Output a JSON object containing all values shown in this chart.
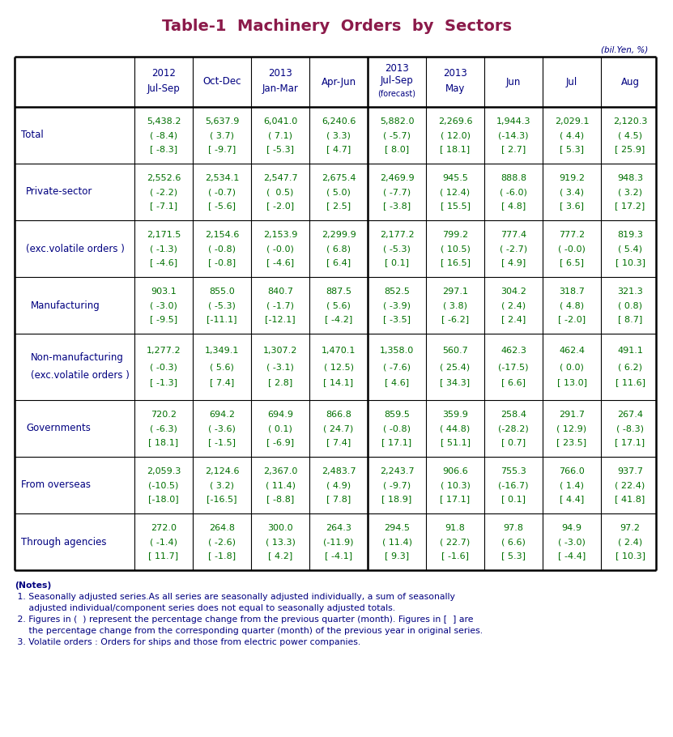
{
  "title": "Table-1  Machinery  Orders  by  Sectors",
  "title_color": "#8B1A4A",
  "unit_text": "(bil.Yen, %)",
  "unit_color": "#000080",
  "header_color": "#000080",
  "data_color": "#007000",
  "label_color": "#000080",
  "notes_color": "#000080",
  "col_headers": [
    [
      "2012",
      "Jul-Sep",
      ""
    ],
    [
      "",
      "Oct-Dec",
      ""
    ],
    [
      "2013",
      "Jan-Mar",
      ""
    ],
    [
      "",
      "Apr-Jun",
      ""
    ],
    [
      "2013",
      "Jul-Sep",
      "(forecast)"
    ],
    [
      "2013",
      "May",
      ""
    ],
    [
      "",
      "Jun",
      ""
    ],
    [
      "",
      "Jul",
      ""
    ],
    [
      "",
      "Aug",
      ""
    ]
  ],
  "rows": [
    {
      "label_lines": [
        "Total"
      ],
      "indent": 0,
      "data": [
        [
          "5,438.2",
          "( -8.4)",
          "[ -8.3]"
        ],
        [
          "5,637.9",
          "( 3.7)",
          "[ -9.7]"
        ],
        [
          "6,041.0",
          "( 7.1)",
          "[ -5.3]"
        ],
        [
          "6,240.6",
          "( 3.3)",
          "[ 4.7]"
        ],
        [
          "5,882.0",
          "( -5.7)",
          "[ 8.0]"
        ],
        [
          "2,269.6",
          "( 12.0)",
          "[ 18.1]"
        ],
        [
          "1,944.3",
          "(-14.3)",
          "[ 2.7]"
        ],
        [
          "2,029.1",
          "( 4.4)",
          "[ 5.3]"
        ],
        [
          "2,120.3",
          "( 4.5)",
          "[ 25.9]"
        ]
      ]
    },
    {
      "label_lines": [
        "Private-sector"
      ],
      "indent": 1,
      "data": [
        [
          "2,552.6",
          "( -2.2)",
          "[ -7.1]"
        ],
        [
          "2,534.1",
          "( -0.7)",
          "[ -5.6]"
        ],
        [
          "2,547.7",
          "(  0.5)",
          "[ -2.0]"
        ],
        [
          "2,675.4",
          "( 5.0)",
          "[ 2.5]"
        ],
        [
          "2,469.9",
          "( -7.7)",
          "[ -3.8]"
        ],
        [
          "945.5",
          "( 12.4)",
          "[ 15.5]"
        ],
        [
          "888.8",
          "( -6.0)",
          "[ 4.8]"
        ],
        [
          "919.2",
          "( 3.4)",
          "[ 3.6]"
        ],
        [
          "948.3",
          "( 3.2)",
          "[ 17.2]"
        ]
      ]
    },
    {
      "label_lines": [
        "(exc.volatile orders )"
      ],
      "indent": 1,
      "data": [
        [
          "2,171.5",
          "( -1.3)",
          "[ -4.6]"
        ],
        [
          "2,154.6",
          "( -0.8)",
          "[ -0.8]"
        ],
        [
          "2,153.9",
          "( -0.0)",
          "[ -4.6]"
        ],
        [
          "2,299.9",
          "( 6.8)",
          "[ 6.4]"
        ],
        [
          "2,177.2",
          "( -5.3)",
          "[ 0.1]"
        ],
        [
          "799.2",
          "( 10.5)",
          "[ 16.5]"
        ],
        [
          "777.4",
          "( -2.7)",
          "[ 4.9]"
        ],
        [
          "777.2",
          "( -0.0)",
          "[ 6.5]"
        ],
        [
          "819.3",
          "( 5.4)",
          "[ 10.3]"
        ]
      ]
    },
    {
      "label_lines": [
        "Manufacturing"
      ],
      "indent": 2,
      "data": [
        [
          "903.1",
          "( -3.0)",
          "[ -9.5]"
        ],
        [
          "855.0",
          "( -5.3)",
          "[-11.1]"
        ],
        [
          "840.7",
          "( -1.7)",
          "[-12.1]"
        ],
        [
          "887.5",
          "( 5.6)",
          "[ -4.2]"
        ],
        [
          "852.5",
          "( -3.9)",
          "[ -3.5]"
        ],
        [
          "297.1",
          "( 3.8)",
          "[ -6.2]"
        ],
        [
          "304.2",
          "( 2.4)",
          "[ 2.4]"
        ],
        [
          "318.7",
          "( 4.8)",
          "[ -2.0]"
        ],
        [
          "321.3",
          "( 0.8)",
          "[ 8.7]"
        ]
      ]
    },
    {
      "label_lines": [
        "Non-manufacturing",
        "(exc.volatile orders )"
      ],
      "indent": 2,
      "data": [
        [
          "1,277.2",
          "( -0.3)",
          "[ -1.3]"
        ],
        [
          "1,349.1",
          "( 5.6)",
          "[ 7.4]"
        ],
        [
          "1,307.2",
          "( -3.1)",
          "[ 2.8]"
        ],
        [
          "1,470.1",
          "( 12.5)",
          "[ 14.1]"
        ],
        [
          "1,358.0",
          "( -7.6)",
          "[ 4.6]"
        ],
        [
          "560.7",
          "( 25.4)",
          "[ 34.3]"
        ],
        [
          "462.3",
          "(-17.5)",
          "[ 6.6]"
        ],
        [
          "462.4",
          "( 0.0)",
          "[ 13.0]"
        ],
        [
          "491.1",
          "( 6.2)",
          "[ 11.6]"
        ]
      ]
    },
    {
      "label_lines": [
        "Governments"
      ],
      "indent": 1,
      "data": [
        [
          "720.2",
          "( -6.3)",
          "[ 18.1]"
        ],
        [
          "694.2",
          "( -3.6)",
          "[ -1.5]"
        ],
        [
          "694.9",
          "( 0.1)",
          "[ -6.9]"
        ],
        [
          "866.8",
          "( 24.7)",
          "[ 7.4]"
        ],
        [
          "859.5",
          "( -0.8)",
          "[ 17.1]"
        ],
        [
          "359.9",
          "( 44.8)",
          "[ 51.1]"
        ],
        [
          "258.4",
          "(-28.2)",
          "[ 0.7]"
        ],
        [
          "291.7",
          "( 12.9)",
          "[ 23.5]"
        ],
        [
          "267.4",
          "( -8.3)",
          "[ 17.1]"
        ]
      ]
    },
    {
      "label_lines": [
        "From overseas"
      ],
      "indent": 0,
      "data": [
        [
          "2,059.3",
          "(-10.5)",
          "[-18.0]"
        ],
        [
          "2,124.6",
          "( 3.2)",
          "[-16.5]"
        ],
        [
          "2,367.0",
          "( 11.4)",
          "[ -8.8]"
        ],
        [
          "2,483.7",
          "( 4.9)",
          "[ 7.8]"
        ],
        [
          "2,243.7",
          "( -9.7)",
          "[ 18.9]"
        ],
        [
          "906.6",
          "( 10.3)",
          "[ 17.1]"
        ],
        [
          "755.3",
          "(-16.7)",
          "[ 0.1]"
        ],
        [
          "766.0",
          "( 1.4)",
          "[ 4.4]"
        ],
        [
          "937.7",
          "( 22.4)",
          "[ 41.8]"
        ]
      ]
    },
    {
      "label_lines": [
        "Through agencies"
      ],
      "indent": 0,
      "data": [
        [
          "272.0",
          "( -1.4)",
          "[ 11.7]"
        ],
        [
          "264.8",
          "( -2.6)",
          "[ -1.8]"
        ],
        [
          "300.0",
          "( 13.3)",
          "[ 4.2]"
        ],
        [
          "264.3",
          "(-11.9)",
          "[ -4.1]"
        ],
        [
          "294.5",
          "( 11.4)",
          "[ 9.3]"
        ],
        [
          "91.8",
          "( 22.7)",
          "[ -1.6]"
        ],
        [
          "97.8",
          "( 6.6)",
          "[ 5.3]"
        ],
        [
          "94.9",
          "( -3.0)",
          "[ -4.4]"
        ],
        [
          "97.2",
          "( 2.4)",
          "[ 10.3]"
        ]
      ]
    }
  ],
  "notes": [
    "(Notes)",
    " 1. Seasonally adjusted series.As all series are seasonally adjusted individually, a sum of seasonally",
    "     adjusted individual/component series does not equal to seasonally adjusted totals.",
    " 2. Figures in (  ) represent the percentage change from the previous quarter (month). Figures in [  ] are",
    "     the percentage change from the corresponding quarter (month) of the previous year in original series.",
    " 3. Volatile orders : Orders for ships and those from electric power companies."
  ],
  "divider_col": 5
}
